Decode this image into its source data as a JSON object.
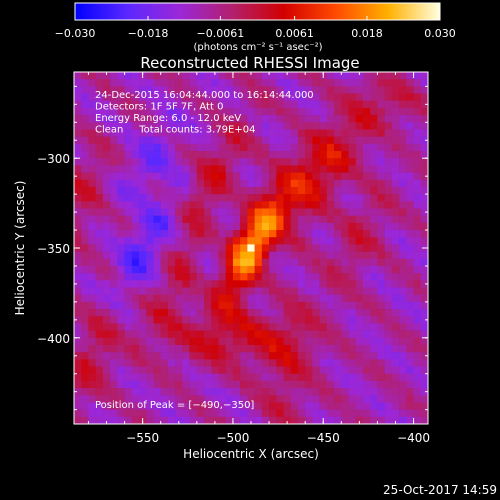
{
  "chart_data": {
    "type": "heatmap",
    "title": "Reconstructed RHESSI Image",
    "xlabel": "Heliocentric X (arcsec)",
    "ylabel": "Heliocentric Y (arcsec)",
    "xlim": [
      -588,
      -392
    ],
    "ylim": [
      -448,
      -252
    ],
    "x_ticks": [
      -550,
      -500,
      -450,
      -400
    ],
    "y_ticks": [
      -300,
      -350,
      -400
    ],
    "x_tick_labels": [
      "−550",
      "−500",
      "−450",
      "−400"
    ],
    "y_tick_labels": [
      "−300",
      "−350",
      "−400"
    ],
    "colorbar": {
      "range": [
        -0.03,
        0.03
      ],
      "ticks": [
        -0.03,
        -0.018,
        -0.0061,
        0.0061,
        0.018,
        0.03
      ],
      "tick_labels": [
        "−0.030",
        "−0.018",
        "−0.0061",
        "0.0061",
        "0.018",
        "0.030"
      ],
      "units": "(photons cm⁻² s⁻¹ asec⁻²)",
      "colormap": [
        "#0000ff",
        "#5a28ff",
        "#9b27d8",
        "#b2206f",
        "#d20000",
        "#ff4a00",
        "#ffb000",
        "#ffffe0"
      ]
    },
    "info_lines": [
      "24-Dec-2015 16:04:44.000 to 16:14:44.000",
      "Detectors: 1F 5F 7F, Att 0",
      "Energy Range: 6.0 - 12.0 keV",
      "Clean     Total counts: 3.79E+04"
    ],
    "peak_label": "Position of Peak = [−490,−350]",
    "peak": {
      "x": -490,
      "y": -350,
      "value": 0.03
    },
    "grid": false,
    "legend": "none",
    "sources": [
      {
        "x": -490,
        "y": -350,
        "amp": 0.026,
        "sx": 8,
        "sy": 22,
        "rot": -25
      },
      {
        "x": -466,
        "y": -320,
        "amp": 0.014,
        "sx": 8,
        "sy": 32,
        "rot": -30
      },
      {
        "x": -512,
        "y": -312,
        "amp": 0.01,
        "sx": 7,
        "sy": 30,
        "rot": -30
      },
      {
        "x": -440,
        "y": -300,
        "amp": 0.009,
        "sx": 7,
        "sy": 26,
        "rot": -30
      },
      {
        "x": -430,
        "y": -345,
        "amp": 0.007,
        "sx": 8,
        "sy": 24,
        "rot": -25
      },
      {
        "x": -500,
        "y": -400,
        "amp": 0.011,
        "sx": 26,
        "sy": 11,
        "rot": 0
      },
      {
        "x": -470,
        "y": -420,
        "amp": 0.007,
        "sx": 10,
        "sy": 28,
        "rot": -10
      },
      {
        "x": -585,
        "y": -320,
        "amp": 0.008,
        "sx": 8,
        "sy": 20,
        "rot": -20
      },
      {
        "x": -578,
        "y": -410,
        "amp": 0.009,
        "sx": 8,
        "sy": 24,
        "rot": -20
      },
      {
        "x": -528,
        "y": -368,
        "amp": 0.008,
        "sx": 8,
        "sy": 26,
        "rot": -30
      },
      {
        "x": -412,
        "y": -270,
        "amp": 0.006,
        "sx": 14,
        "sy": 10,
        "rot": 0
      }
    ],
    "background": -0.0095,
    "ripple": {
      "amp": 0.0045,
      "angle_deg": 50,
      "period_arcsec": 26
    },
    "negative_lobes": [
      {
        "x": -548,
        "y": -350,
        "amp": -0.012,
        "sx": 8,
        "sy": 24,
        "rot": -30
      },
      {
        "x": -477,
        "y": -350,
        "amp": -0.007,
        "sx": 5,
        "sy": 20,
        "rot": -25
      },
      {
        "x": -512,
        "y": -355,
        "amp": -0.006,
        "sx": 5,
        "sy": 20,
        "rot": -25
      },
      {
        "x": -545,
        "y": -300,
        "amp": -0.008,
        "sx": 7,
        "sy": 18,
        "rot": -30
      }
    ]
  },
  "footer": {
    "timestamp": "25-Oct-2017 14:59"
  }
}
